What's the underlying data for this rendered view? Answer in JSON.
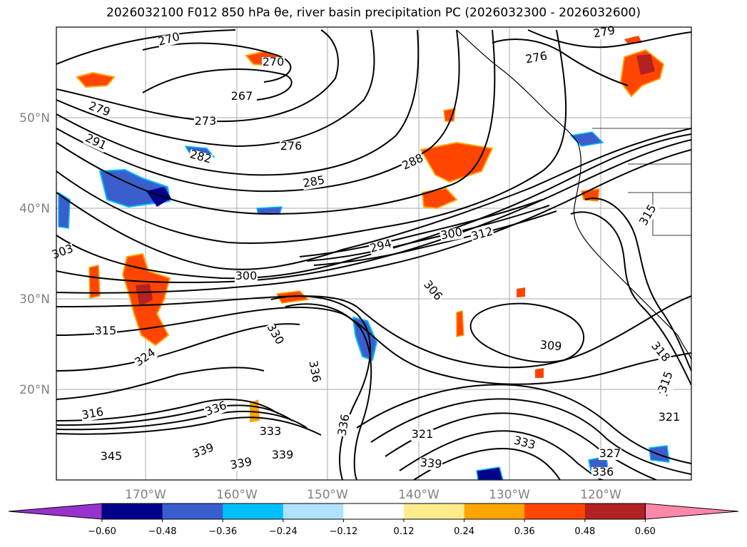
{
  "title": "2026032100 F012 850 hPa θe, river basin precipitation PC (2026032300 - 2026032600)",
  "latitude_labels": [
    "50°N",
    "40°N",
    "30°N",
    "20°N"
  ],
  "longitude_labels": [
    "170°W",
    "160°W",
    "150°W",
    "140°W",
    "130°W",
    "120°W"
  ],
  "contour_labels": [
    "270",
    "279",
    "276",
    "270",
    "267",
    "273",
    "279",
    "291",
    "282",
    "276",
    "288",
    "285",
    "294",
    "300",
    "312",
    "303",
    "315",
    "300",
    "306",
    "315",
    "324",
    "330",
    "309",
    "318",
    "336",
    "315",
    "321",
    "336",
    "333",
    "321",
    "339",
    "339",
    "333",
    "327",
    "339",
    "336",
    "316",
    "345",
    "339",
    "336",
    "315"
  ],
  "colorbar": {
    "tick_labels": [
      "−0.60",
      "−0.48",
      "−0.36",
      "−0.24",
      "−0.12",
      "0.12",
      "0.24",
      "0.36",
      "0.48",
      "0.60"
    ],
    "colors": [
      "#9932cc",
      "#00008b",
      "#3a5fcd",
      "#00bfff",
      "#b0e2ff",
      "#ffffff",
      "#ffec8b",
      "#ffa500",
      "#ff4500",
      "#b22222",
      "#ff88aa"
    ]
  }
}
